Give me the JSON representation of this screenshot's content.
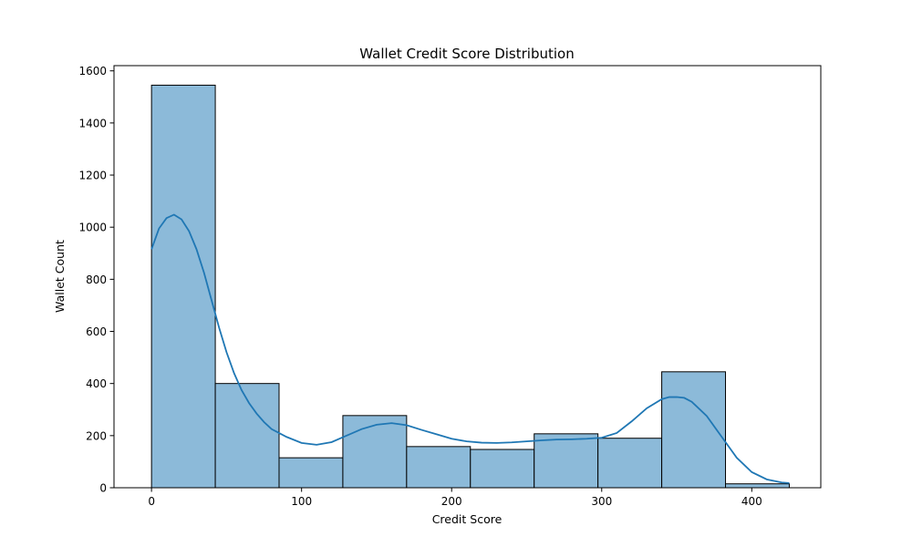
{
  "chart_data": {
    "type": "bar",
    "title": "Wallet Credit Score Distribution",
    "xlabel": "Credit Score",
    "ylabel": "Wallet Count",
    "xlim": [
      -25,
      446
    ],
    "ylim": [
      0,
      1620
    ],
    "x_ticks": [
      0,
      100,
      200,
      300,
      400
    ],
    "y_ticks": [
      0,
      200,
      400,
      600,
      800,
      1000,
      1200,
      1400,
      1600
    ],
    "grid": false,
    "bins": [
      {
        "start": 0,
        "end": 42.5,
        "count": 1545
      },
      {
        "start": 42.5,
        "end": 85,
        "count": 400
      },
      {
        "start": 85,
        "end": 127.5,
        "count": 115
      },
      {
        "start": 127.5,
        "end": 170,
        "count": 277
      },
      {
        "start": 170,
        "end": 212.5,
        "count": 158
      },
      {
        "start": 212.5,
        "end": 255,
        "count": 147
      },
      {
        "start": 255,
        "end": 297.5,
        "count": 207
      },
      {
        "start": 297.5,
        "end": 340,
        "count": 190
      },
      {
        "start": 340,
        "end": 382.5,
        "count": 445
      },
      {
        "start": 382.5,
        "end": 425,
        "count": 15
      }
    ],
    "kde": {
      "x": [
        0,
        5,
        10,
        15,
        20,
        25,
        30,
        35,
        40,
        45,
        50,
        55,
        60,
        65,
        70,
        75,
        80,
        90,
        100,
        110,
        120,
        130,
        140,
        150,
        160,
        170,
        180,
        190,
        200,
        210,
        220,
        230,
        240,
        250,
        260,
        270,
        280,
        290,
        300,
        310,
        320,
        330,
        340,
        345,
        350,
        355,
        360,
        370,
        380,
        390,
        400,
        410,
        420,
        425
      ],
      "y": [
        915,
        995,
        1035,
        1048,
        1030,
        985,
        915,
        825,
        720,
        615,
        520,
        440,
        375,
        325,
        285,
        252,
        225,
        195,
        172,
        165,
        175,
        200,
        225,
        242,
        248,
        240,
        222,
        205,
        188,
        178,
        173,
        172,
        174,
        178,
        182,
        185,
        186,
        188,
        192,
        210,
        255,
        305,
        340,
        348,
        348,
        345,
        330,
        275,
        195,
        115,
        60,
        32,
        20,
        18
      ]
    },
    "colors": {
      "bar_fill": "#8cbad9",
      "bar_edge": "#000000",
      "kde_line": "#1f77b4"
    }
  }
}
